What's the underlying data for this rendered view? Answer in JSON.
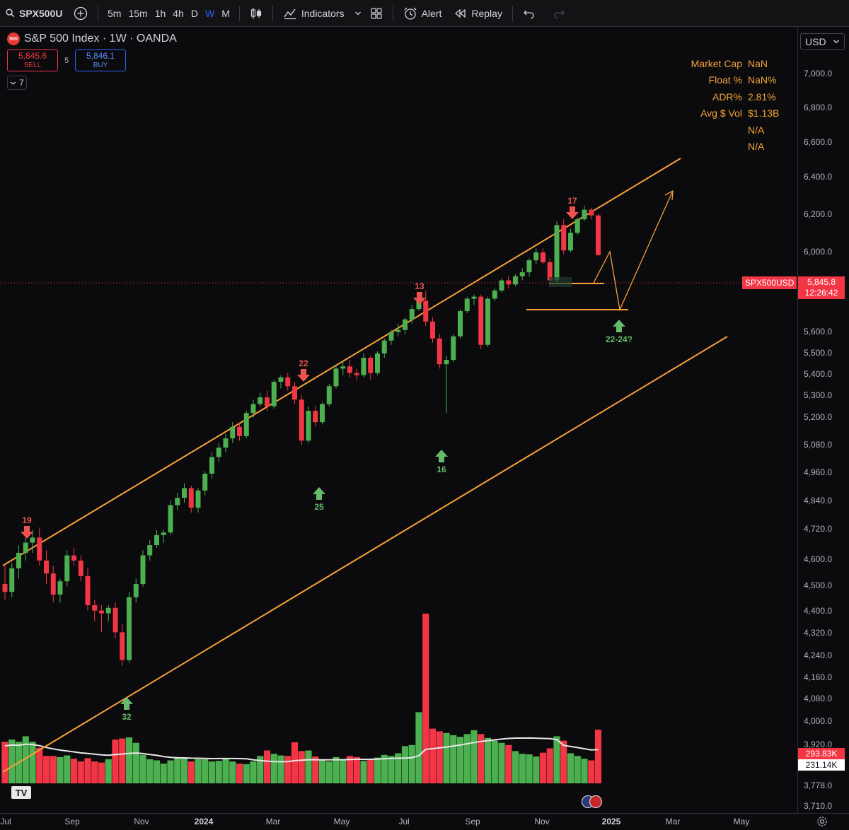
{
  "toolbar": {
    "symbol": "SPX500U",
    "timeframes": [
      {
        "label": "5m",
        "active": false
      },
      {
        "label": "15m",
        "active": false
      },
      {
        "label": "1h",
        "active": false
      },
      {
        "label": "4h",
        "active": false
      },
      {
        "label": "D",
        "active": false
      },
      {
        "label": "W",
        "active": true
      },
      {
        "label": "M",
        "active": false
      }
    ],
    "indicators_label": "Indicators",
    "alert_label": "Alert",
    "replay_label": "Replay",
    "accent_color": "#2962ff"
  },
  "legend": {
    "logo_text": "500",
    "title": "S&P 500 Index · 1W · OANDA",
    "sell_price": "5,845.6",
    "sell_label": "SELL",
    "spread": "5",
    "buy_price": "5,846.1",
    "buy_label": "BUY",
    "indicator_count": "7"
  },
  "stats": [
    {
      "key": "Market Cap",
      "value": "NaN"
    },
    {
      "key": "Float %",
      "value": "NaN%"
    },
    {
      "key": "ADR%",
      "value": "2.81%"
    },
    {
      "key": "Avg $ Vol",
      "value": "$1.13B"
    },
    {
      "key": "",
      "value": "N/A"
    },
    {
      "key": "",
      "value": "N/A"
    }
  ],
  "currency": "USD",
  "price_axis": {
    "ticks": [
      "7,000.0",
      "6,800.0",
      "6,600.0",
      "6,400.0",
      "6,200.0",
      "6,000.0",
      "5,600.0",
      "5,500.0",
      "5,400.0",
      "5,300.0",
      "5,200.0",
      "5,080.0",
      "4,960.0",
      "4,840.0",
      "4,720.0",
      "4,600.0",
      "4,500.0",
      "4,400.0",
      "4,320.0",
      "4,240.0",
      "4,160.0",
      "4,080.0",
      "4,000.0",
      "3,920.0",
      "3,778.0",
      "3,710.0"
    ],
    "symbol_tag": "SPX500USD",
    "last_price": "5,845.8",
    "countdown": "12:26:42",
    "volume_last": "293.83K",
    "volume_ma": "231.14K"
  },
  "time_axis": {
    "labels": [
      {
        "text": "Jul",
        "bold": false
      },
      {
        "text": "Sep",
        "bold": false
      },
      {
        "text": "Nov",
        "bold": false
      },
      {
        "text": "2024",
        "bold": true
      },
      {
        "text": "Mar",
        "bold": false
      },
      {
        "text": "May",
        "bold": false
      },
      {
        "text": "Jul",
        "bold": false
      },
      {
        "text": "Sep",
        "bold": false
      },
      {
        "text": "Nov",
        "bold": false
      },
      {
        "text": "2025",
        "bold": true
      },
      {
        "text": "Mar",
        "bold": false
      },
      {
        "text": "May",
        "bold": false
      }
    ]
  },
  "annotations": {
    "down_arrows": [
      "19",
      "22",
      "13",
      "17"
    ],
    "up_arrows": [
      "32",
      "25",
      "16",
      "22-24?"
    ]
  },
  "colors": {
    "up": "#4caf50",
    "down": "#f23645",
    "channel": "#f7a03a",
    "volume_ma": "#e8e8e8",
    "up_vol": "#4caf50",
    "down_vol": "#f23645"
  },
  "chart_data": {
    "type": "candlestick",
    "interval": "1W",
    "candles": [
      {
        "o": 4400,
        "h": 4470,
        "l": 4340,
        "c": 4370
      },
      {
        "o": 4370,
        "h": 4480,
        "l": 4350,
        "c": 4460
      },
      {
        "o": 4460,
        "h": 4550,
        "l": 4420,
        "c": 4520
      },
      {
        "o": 4520,
        "h": 4580,
        "l": 4490,
        "c": 4560
      },
      {
        "o": 4560,
        "h": 4610,
        "l": 4520,
        "c": 4580
      },
      {
        "o": 4580,
        "h": 4620,
        "l": 4470,
        "c": 4490
      },
      {
        "o": 4490,
        "h": 4530,
        "l": 4400,
        "c": 4440
      },
      {
        "o": 4440,
        "h": 4470,
        "l": 4330,
        "c": 4360
      },
      {
        "o": 4360,
        "h": 4420,
        "l": 4330,
        "c": 4410
      },
      {
        "o": 4410,
        "h": 4530,
        "l": 4390,
        "c": 4510
      },
      {
        "o": 4510,
        "h": 4540,
        "l": 4470,
        "c": 4490
      },
      {
        "o": 4490,
        "h": 4510,
        "l": 4410,
        "c": 4430
      },
      {
        "o": 4430,
        "h": 4460,
        "l": 4300,
        "c": 4320
      },
      {
        "o": 4320,
        "h": 4340,
        "l": 4260,
        "c": 4300
      },
      {
        "o": 4300,
        "h": 4320,
        "l": 4220,
        "c": 4290
      },
      {
        "o": 4290,
        "h": 4320,
        "l": 4260,
        "c": 4310
      },
      {
        "o": 4310,
        "h": 4330,
        "l": 4200,
        "c": 4220
      },
      {
        "o": 4220,
        "h": 4250,
        "l": 4100,
        "c": 4120
      },
      {
        "o": 4120,
        "h": 4370,
        "l": 4110,
        "c": 4350
      },
      {
        "o": 4350,
        "h": 4420,
        "l": 4330,
        "c": 4400
      },
      {
        "o": 4400,
        "h": 4530,
        "l": 4390,
        "c": 4510
      },
      {
        "o": 4510,
        "h": 4570,
        "l": 4490,
        "c": 4550
      },
      {
        "o": 4550,
        "h": 4610,
        "l": 4540,
        "c": 4590
      },
      {
        "o": 4590,
        "h": 4610,
        "l": 4560,
        "c": 4600
      },
      {
        "o": 4600,
        "h": 4730,
        "l": 4590,
        "c": 4710
      },
      {
        "o": 4710,
        "h": 4760,
        "l": 4690,
        "c": 4740
      },
      {
        "o": 4740,
        "h": 4800,
        "l": 4720,
        "c": 4780
      },
      {
        "o": 4780,
        "h": 4790,
        "l": 4680,
        "c": 4700
      },
      {
        "o": 4700,
        "h": 4780,
        "l": 4680,
        "c": 4770
      },
      {
        "o": 4770,
        "h": 4850,
        "l": 4750,
        "c": 4840
      },
      {
        "o": 4840,
        "h": 4930,
        "l": 4820,
        "c": 4910
      },
      {
        "o": 4910,
        "h": 4970,
        "l": 4890,
        "c": 4950
      },
      {
        "o": 4950,
        "h": 5010,
        "l": 4930,
        "c": 4990
      },
      {
        "o": 4990,
        "h": 5060,
        "l": 4970,
        "c": 5040
      },
      {
        "o": 5040,
        "h": 5060,
        "l": 4980,
        "c": 5000
      },
      {
        "o": 5000,
        "h": 5110,
        "l": 4990,
        "c": 5100
      },
      {
        "o": 5100,
        "h": 5160,
        "l": 5080,
        "c": 5140
      },
      {
        "o": 5140,
        "h": 5190,
        "l": 5130,
        "c": 5170
      },
      {
        "o": 5170,
        "h": 5200,
        "l": 5110,
        "c": 5130
      },
      {
        "o": 5130,
        "h": 5250,
        "l": 5120,
        "c": 5240
      },
      {
        "o": 5240,
        "h": 5270,
        "l": 5210,
        "c": 5260
      },
      {
        "o": 5260,
        "h": 5280,
        "l": 5200,
        "c": 5220
      },
      {
        "o": 5220,
        "h": 5240,
        "l": 5140,
        "c": 5160
      },
      {
        "o": 5160,
        "h": 5180,
        "l": 4960,
        "c": 4980
      },
      {
        "o": 4980,
        "h": 5130,
        "l": 4970,
        "c": 5110
      },
      {
        "o": 5110,
        "h": 5130,
        "l": 5040,
        "c": 5060
      },
      {
        "o": 5060,
        "h": 5150,
        "l": 5050,
        "c": 5140
      },
      {
        "o": 5140,
        "h": 5230,
        "l": 5130,
        "c": 5220
      },
      {
        "o": 5220,
        "h": 5320,
        "l": 5210,
        "c": 5300
      },
      {
        "o": 5300,
        "h": 5330,
        "l": 5270,
        "c": 5310
      },
      {
        "o": 5310,
        "h": 5340,
        "l": 5260,
        "c": 5280
      },
      {
        "o": 5280,
        "h": 5300,
        "l": 5250,
        "c": 5270
      },
      {
        "o": 5270,
        "h": 5370,
        "l": 5260,
        "c": 5350
      },
      {
        "o": 5350,
        "h": 5360,
        "l": 5250,
        "c": 5280
      },
      {
        "o": 5280,
        "h": 5380,
        "l": 5270,
        "c": 5370
      },
      {
        "o": 5370,
        "h": 5440,
        "l": 5350,
        "c": 5430
      },
      {
        "o": 5430,
        "h": 5480,
        "l": 5410,
        "c": 5470
      },
      {
        "o": 5470,
        "h": 5510,
        "l": 5450,
        "c": 5480
      },
      {
        "o": 5480,
        "h": 5540,
        "l": 5460,
        "c": 5530
      },
      {
        "o": 5530,
        "h": 5600,
        "l": 5510,
        "c": 5580
      },
      {
        "o": 5580,
        "h": 5660,
        "l": 5570,
        "c": 5620
      },
      {
        "o": 5620,
        "h": 5670,
        "l": 5500,
        "c": 5520
      },
      {
        "o": 5520,
        "h": 5540,
        "l": 5420,
        "c": 5440
      },
      {
        "o": 5440,
        "h": 5460,
        "l": 5300,
        "c": 5320
      },
      {
        "o": 5320,
        "h": 5360,
        "l": 5100,
        "c": 5340
      },
      {
        "o": 5340,
        "h": 5460,
        "l": 5330,
        "c": 5450
      },
      {
        "o": 5450,
        "h": 5580,
        "l": 5440,
        "c": 5570
      },
      {
        "o": 5570,
        "h": 5640,
        "l": 5560,
        "c": 5630
      },
      {
        "o": 5630,
        "h": 5650,
        "l": 5600,
        "c": 5640
      },
      {
        "o": 5640,
        "h": 5650,
        "l": 5390,
        "c": 5410
      },
      {
        "o": 5410,
        "h": 5640,
        "l": 5400,
        "c": 5630
      },
      {
        "o": 5630,
        "h": 5680,
        "l": 5620,
        "c": 5670
      },
      {
        "o": 5670,
        "h": 5730,
        "l": 5660,
        "c": 5720
      },
      {
        "o": 5720,
        "h": 5740,
        "l": 5680,
        "c": 5700
      },
      {
        "o": 5700,
        "h": 5750,
        "l": 5690,
        "c": 5740
      },
      {
        "o": 5740,
        "h": 5780,
        "l": 5720,
        "c": 5760
      },
      {
        "o": 5760,
        "h": 5830,
        "l": 5740,
        "c": 5820
      },
      {
        "o": 5820,
        "h": 5880,
        "l": 5800,
        "c": 5860
      },
      {
        "o": 5860,
        "h": 5880,
        "l": 5800,
        "c": 5810
      },
      {
        "o": 5810,
        "h": 5830,
        "l": 5700,
        "c": 5720
      },
      {
        "o": 5720,
        "h": 6020,
        "l": 5710,
        "c": 6000
      },
      {
        "o": 6000,
        "h": 6030,
        "l": 5850,
        "c": 5870
      },
      {
        "o": 5870,
        "h": 5980,
        "l": 5860,
        "c": 5960
      },
      {
        "o": 5960,
        "h": 6040,
        "l": 5950,
        "c": 6030
      },
      {
        "o": 6030,
        "h": 6100,
        "l": 6020,
        "c": 6080
      },
      {
        "o": 6080,
        "h": 6090,
        "l": 6030,
        "c": 6050
      },
      {
        "o": 6050,
        "h": 6060,
        "l": 5840,
        "c": 5846
      }
    ],
    "volume": [
      76,
      80,
      76,
      86,
      76,
      65,
      50,
      50,
      48,
      51,
      45,
      40,
      46,
      40,
      38,
      44,
      80,
      82,
      84,
      74,
      52,
      44,
      42,
      36,
      42,
      48,
      46,
      40,
      44,
      44,
      40,
      41,
      46,
      40,
      36,
      35,
      40,
      50,
      60,
      54,
      51,
      50,
      75,
      59,
      60,
      49,
      42,
      40,
      48,
      44,
      50,
      48,
      41,
      43,
      47,
      52,
      50,
      55,
      68,
      70,
      130,
      310,
      100,
      95,
      92,
      88,
      85,
      90,
      97,
      90,
      83,
      78,
      74,
      70,
      59,
      54,
      53,
      49,
      56,
      64,
      86,
      78,
      55,
      50,
      45,
      42,
      98
    ],
    "volume_ma": "white smoothed average line",
    "channel": {
      "upper": "upper trend line",
      "lower": "lower trend line"
    },
    "y_axis_scale": "log",
    "ylim": [
      3710,
      7050
    ]
  }
}
